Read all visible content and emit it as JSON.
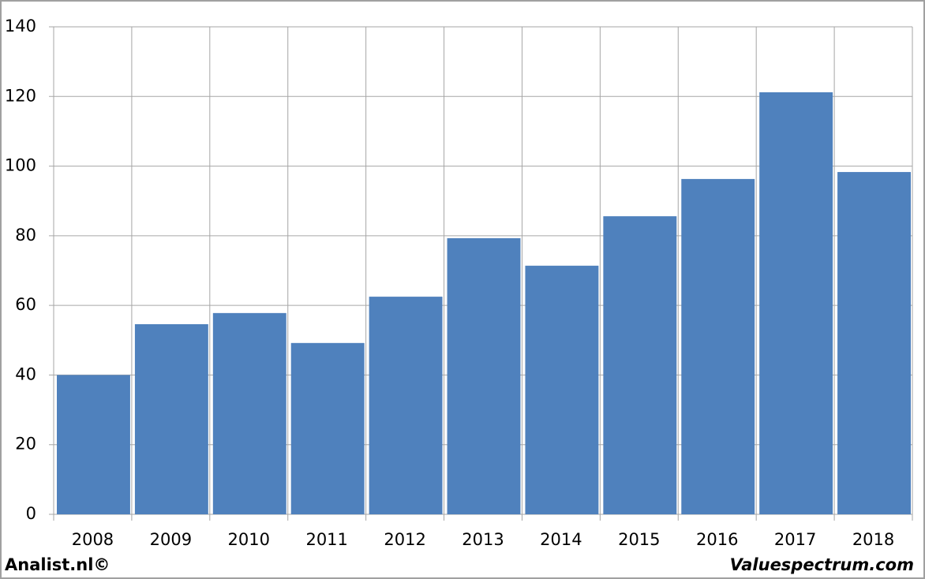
{
  "chart_data": {
    "type": "bar",
    "categories": [
      "2008",
      "2009",
      "2010",
      "2011",
      "2012",
      "2013",
      "2014",
      "2015",
      "2016",
      "2017",
      "2018"
    ],
    "values": [
      40,
      54.6,
      57.8,
      49.2,
      62.5,
      79.3,
      71.4,
      85.6,
      96.3,
      121.2,
      98.3
    ],
    "color": "#4f81bd",
    "ylim": [
      0,
      140
    ],
    "yticks": [
      0,
      20,
      40,
      60,
      80,
      100,
      120,
      140
    ],
    "grid": true,
    "footer_left": "Analist.nl©",
    "footer_right": "Valuespectrum.com"
  }
}
